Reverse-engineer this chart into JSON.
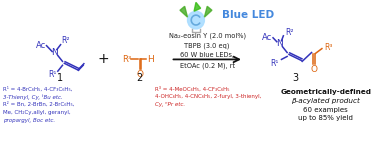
{
  "bg_color": "#ffffff",
  "blue_led_text": "Blue LED",
  "blue_led_color": "#4488DD",
  "conditions_lines": [
    "Na₂-eosin Y (2.0 mol%)",
    "TBPB (3.0 eq)",
    "60 W blue LEDs,",
    "EtOAc (0.2 M), rt"
  ],
  "conditions_color": "#222222",
  "blue_color": "#3333BB",
  "red_color": "#CC2222",
  "orange_color": "#DD6611",
  "r1_lines": [
    "R¹ = 4-BrC₆H₅, 4-CF₃C₆H₅,",
    "3-Thienyl, Cy, ᵗBu etc.",
    "R² = Bn, 2-BrBn, 2-BrC₆H₅,",
    "Me, CH₂Cy,allyl, geranyl,",
    "propargyl, Boc etc."
  ],
  "r3_lines": [
    "R³ = 4-MeOC₆H₅, 4-CF₃C₆H₅",
    "4-OHC₆H₅, 4-CNC₆H₅, 2-furyl, 3-thienyl,",
    "Cy, ⁿPr etc."
  ],
  "result_line1": "Geometrically-defined",
  "result_line2": "β-acylated product",
  "result_line3": "60 examples",
  "result_line4": "up to 85% yield"
}
